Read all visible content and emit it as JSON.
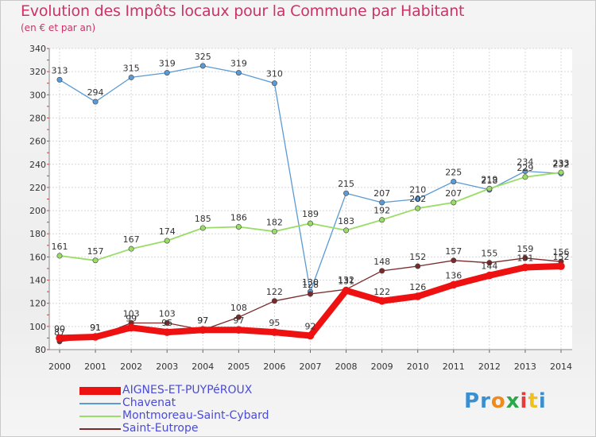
{
  "title": "Evolution des Impôts locaux pour la Commune par Habitant",
  "subtitle": "(en € et par an)",
  "logo": {
    "text": "Proxiti",
    "letters": [
      "P",
      "r",
      "o",
      "x",
      "i",
      "t",
      "i"
    ],
    "colors": [
      "#3a8fd0",
      "#3a8fd0",
      "#f08a1c",
      "#2aa84a",
      "#e43c3c",
      "#f0c01c",
      "#3a8fd0"
    ]
  },
  "chart_data": {
    "type": "line",
    "x": [
      "2000",
      "2001",
      "2002",
      "2003",
      "2004",
      "2005",
      "2006",
      "2007",
      "2008",
      "2009",
      "2010",
      "2011",
      "2012",
      "2013",
      "2014"
    ],
    "ylim": [
      80,
      340
    ],
    "yticks": [
      80,
      100,
      120,
      140,
      160,
      180,
      200,
      220,
      240,
      260,
      280,
      300,
      320,
      340
    ],
    "grid": true,
    "legend_position": "bottom-left",
    "series": [
      {
        "name": "AIGNES-ET-PUYPéROUX",
        "color": "#ee1111",
        "values": [
          90,
          91,
          99,
          95,
          97,
          97,
          95,
          92,
          131,
          122,
          126,
          136,
          144,
          151,
          152
        ]
      },
      {
        "name": "Chavenat",
        "color": "#5b9ad4",
        "values": [
          313,
          294,
          315,
          319,
          325,
          319,
          310,
          130,
          215,
          207,
          210,
          225,
          218,
          234,
          232
        ]
      },
      {
        "name": "Montmoreau-Saint-Cybard",
        "color": "#99dd66",
        "values": [
          161,
          157,
          167,
          174,
          185,
          186,
          182,
          189,
          183,
          192,
          202,
          207,
          219,
          229,
          233
        ]
      },
      {
        "name": "Saint-Eutrope",
        "color": "#7a2a2a",
        "values": [
          87,
          91,
          103,
          103,
          97,
          108,
          122,
          128,
          132,
          148,
          152,
          157,
          155,
          159,
          156
        ]
      }
    ]
  }
}
